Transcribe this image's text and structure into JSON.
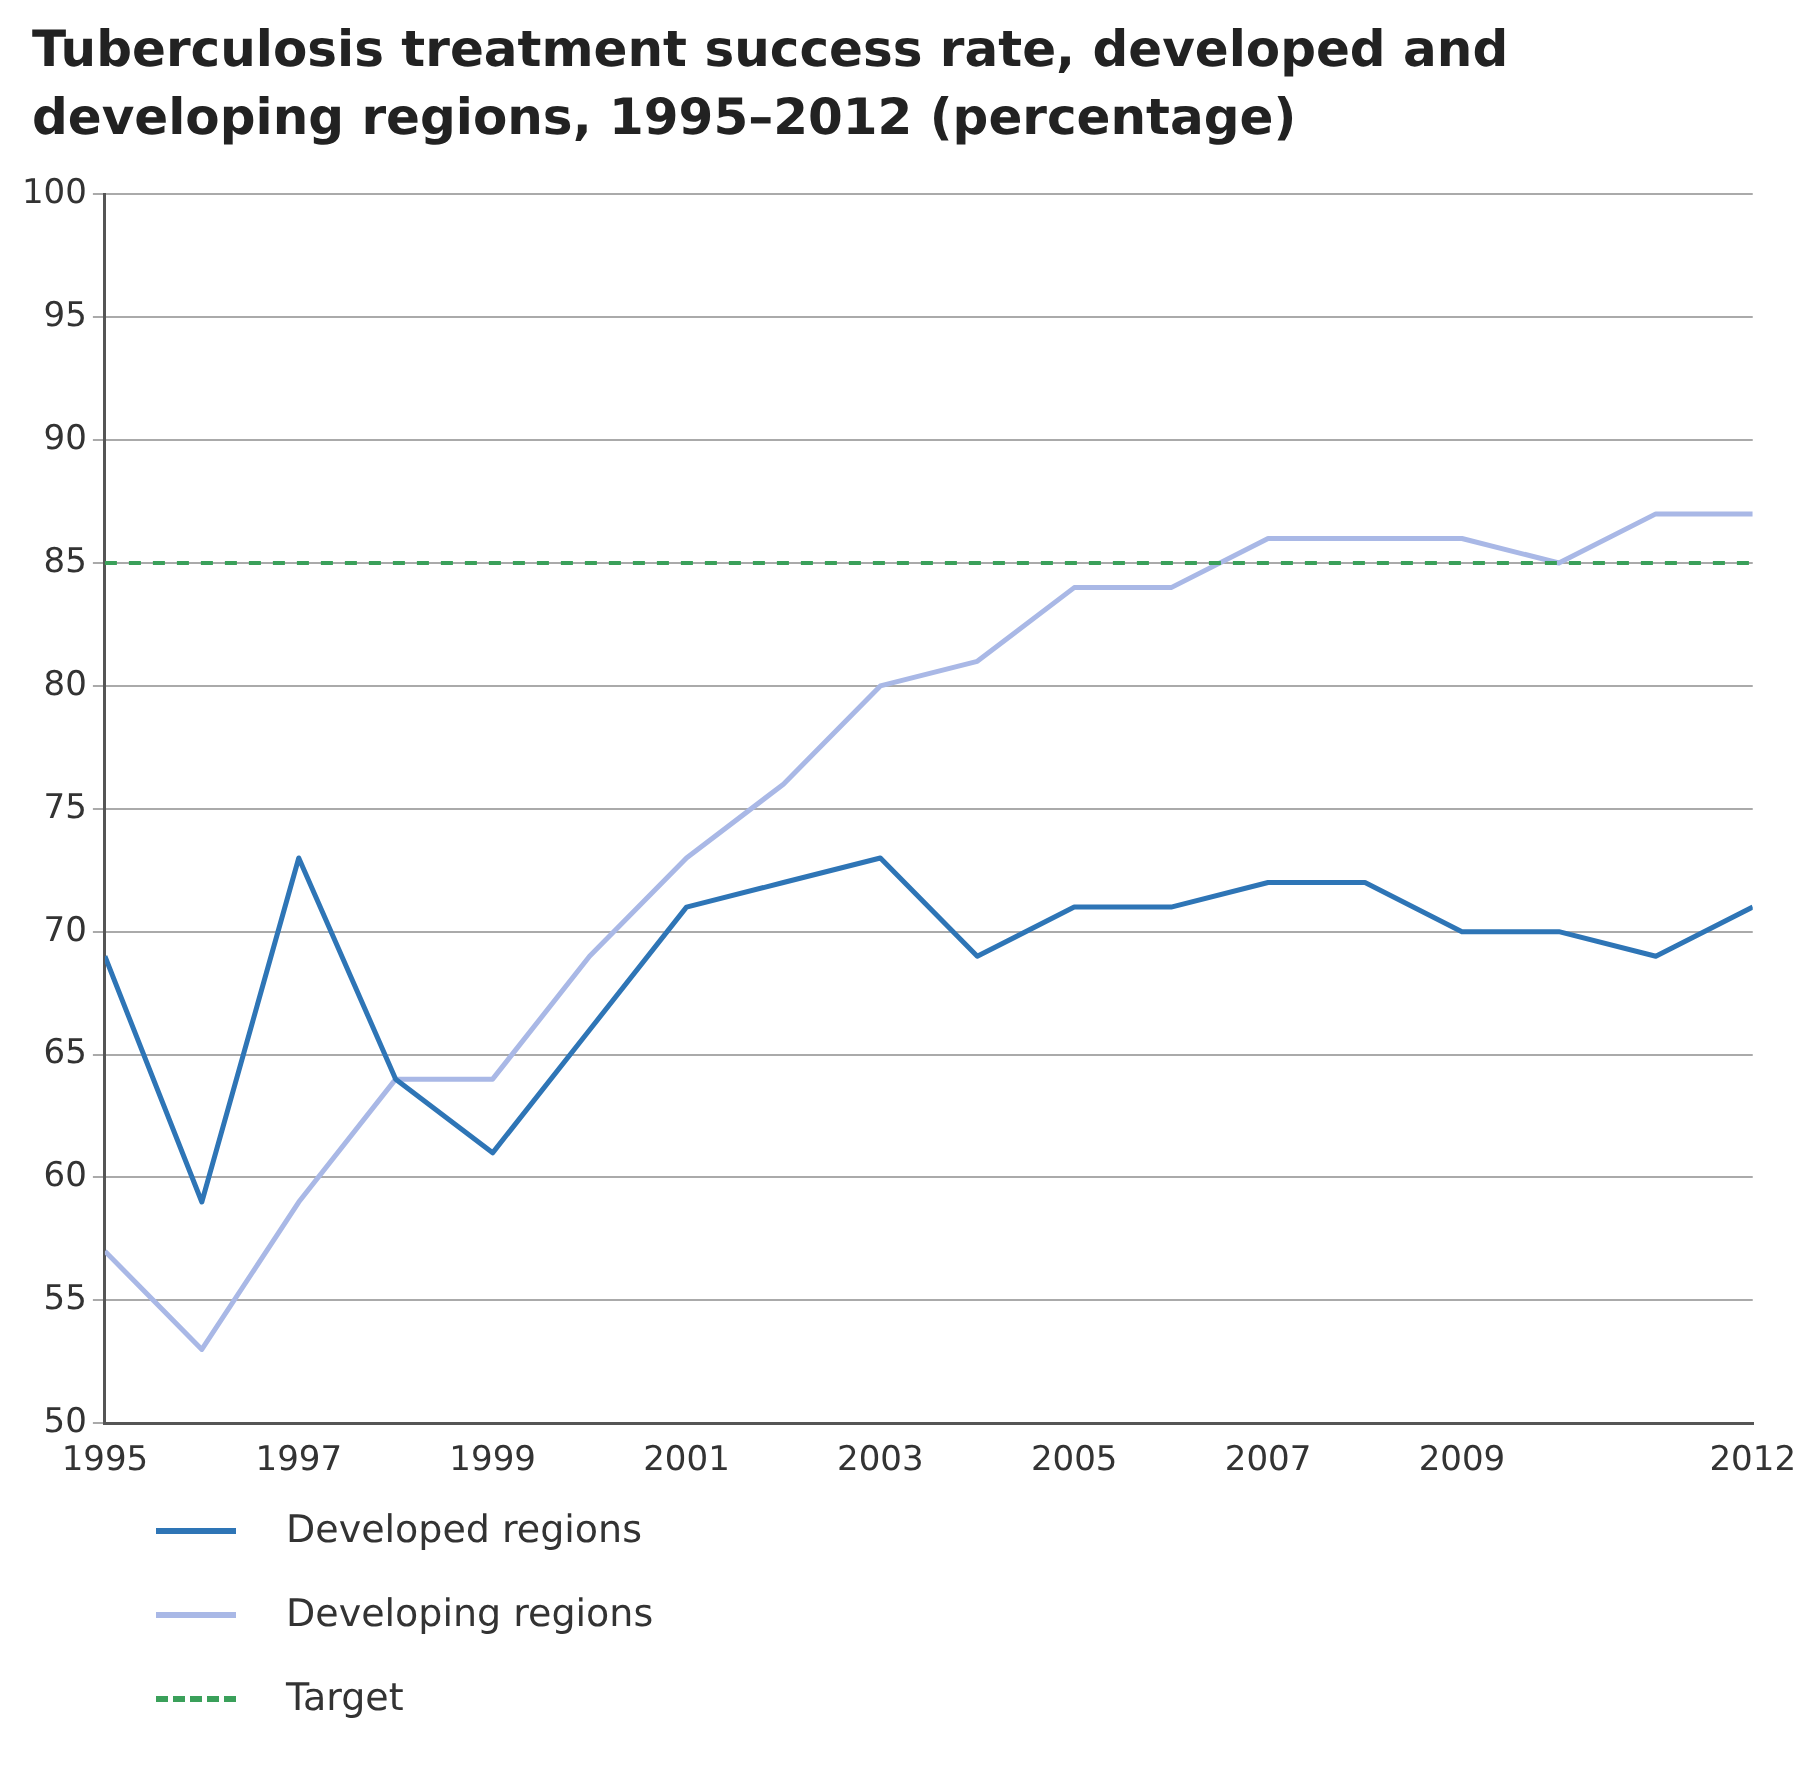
{
  "chart_data": {
    "type": "line",
    "title": "Tuberculosis treatment success rate, developed and developing regions, 1995–2012 (percentage)",
    "x": [
      1995,
      1996,
      1997,
      1998,
      1999,
      2000,
      2001,
      2002,
      2003,
      2004,
      2005,
      2006,
      2007,
      2008,
      2009,
      2010,
      2011,
      2012
    ],
    "series": [
      {
        "name": "Developed regions",
        "color": "#2e75b6",
        "values": [
          69,
          59,
          73,
          64,
          61,
          66,
          71,
          72,
          73,
          69,
          71,
          71,
          72,
          72,
          70,
          70,
          69,
          71
        ]
      },
      {
        "name": "Developing regions",
        "color": "#a9b8e6",
        "values": [
          57,
          53,
          59,
          64,
          64,
          69,
          73,
          76,
          80,
          81,
          84,
          84,
          86,
          86,
          86,
          85,
          87,
          87
        ]
      }
    ],
    "ref_lines": [
      {
        "axis": "y",
        "value": 85,
        "label": "Target",
        "color": "#3aa05a",
        "line_style": "dashed"
      }
    ],
    "xlim": [
      1995,
      2012
    ],
    "xticks": [
      1995,
      1997,
      1999,
      2001,
      2003,
      2005,
      2007,
      2009,
      2012
    ],
    "ylim": [
      50,
      100
    ],
    "yticks": [
      50,
      55,
      60,
      65,
      70,
      75,
      80,
      85,
      90,
      95,
      100
    ],
    "grid": "y",
    "legend": "bottom",
    "marker": "none",
    "line_style": "solid"
  }
}
